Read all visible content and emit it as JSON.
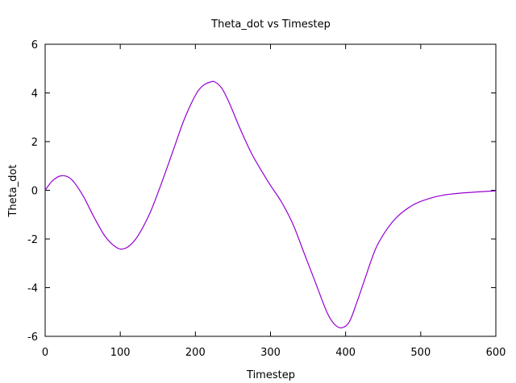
{
  "chart_data": {
    "type": "line",
    "title": "Theta_dot vs Timestep",
    "xlabel": "Timestep",
    "ylabel": "Theta_dot",
    "xlim": [
      0,
      600
    ],
    "ylim": [
      -6,
      6
    ],
    "xticks": [
      0,
      100,
      200,
      300,
      400,
      500,
      600
    ],
    "yticks": [
      -6,
      -4,
      -2,
      0,
      2,
      4,
      6
    ],
    "grid": false,
    "legend": "none",
    "series": [
      {
        "color": "#9400d3",
        "x": [
          0,
          10,
          22,
          35,
          50,
          65,
          80,
          95,
          105,
          115,
          125,
          140,
          155,
          170,
          185,
          200,
          210,
          220,
          226,
          235,
          245,
          260,
          275,
          290,
          300,
          315,
          330,
          345,
          360,
          375,
          385,
          395,
          405,
          415,
          425,
          440,
          455,
          470,
          490,
          510,
          530,
          560,
          600
        ],
        "y": [
          0.0,
          0.4,
          0.6,
          0.45,
          -0.2,
          -1.1,
          -1.9,
          -2.35,
          -2.4,
          -2.2,
          -1.8,
          -0.9,
          0.3,
          1.6,
          2.9,
          3.9,
          4.3,
          4.45,
          4.45,
          4.2,
          3.6,
          2.5,
          1.5,
          0.7,
          0.2,
          -0.5,
          -1.4,
          -2.6,
          -3.8,
          -5.0,
          -5.5,
          -5.65,
          -5.4,
          -4.6,
          -3.7,
          -2.4,
          -1.6,
          -1.05,
          -0.6,
          -0.35,
          -0.2,
          -0.1,
          -0.02
        ]
      }
    ]
  }
}
